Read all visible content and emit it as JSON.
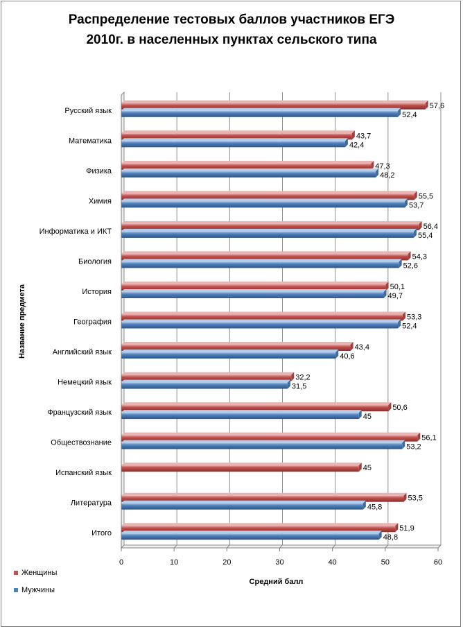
{
  "chart_data": {
    "type": "bar",
    "orientation": "horizontal",
    "title_lines": [
      "Распределение тестовых баллов участников ЕГЭ",
      "2010г. в населенных пунктах сельского типа"
    ],
    "xlabel": "Средний балл",
    "ylabel": "Название предмета",
    "xlim": [
      0,
      60
    ],
    "xticks": [
      "0",
      "10",
      "20",
      "30",
      "40",
      "50",
      "60"
    ],
    "grid": true,
    "legend_position": "bottom-left",
    "categories": [
      "Русский язык",
      "Математика",
      "Физика",
      "Химия",
      "Информатика и ИКТ",
      "Биология",
      "История",
      "География",
      "Английский язык",
      "Немецкий язык",
      "Французский язык",
      "Обществознание",
      "Испанский язык",
      "Литература",
      "Итого"
    ],
    "series": [
      {
        "name": "Женщины",
        "color": "#c0504d",
        "values": [
          57.6,
          43.7,
          47.3,
          55.5,
          56.4,
          54.3,
          50.1,
          53.3,
          43.4,
          32.2,
          50.6,
          56.1,
          45,
          53.5,
          51.9
        ],
        "labels": [
          "57,6",
          "43,7",
          "47,3",
          "55,5",
          "56,4",
          "54,3",
          "50,1",
          "53,3",
          "43,4",
          "32,2",
          "50,6",
          "56,1",
          "45",
          "53,5",
          "51,9"
        ]
      },
      {
        "name": "Мужчины",
        "color": "#4f81bd",
        "values": [
          52.4,
          42.4,
          48.2,
          53.7,
          55.4,
          52.6,
          49.7,
          52.4,
          40.6,
          31.5,
          45,
          53.2,
          null,
          45.8,
          48.8
        ],
        "labels": [
          "52,4",
          "42,4",
          "48,2",
          "53,7",
          "55,4",
          "52,6",
          "49,7",
          "52,4",
          "40,6",
          "31,5",
          "45",
          "53,2",
          "",
          "45,8",
          "48,8"
        ]
      }
    ]
  }
}
